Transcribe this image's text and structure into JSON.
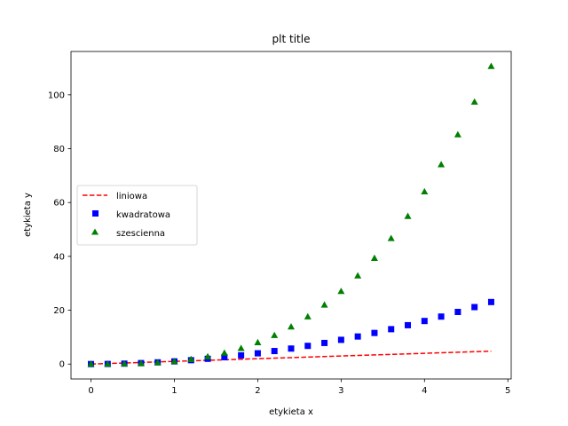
{
  "chart_data": {
    "type": "scatter",
    "title": "plt title",
    "xlabel": "etykieta x",
    "ylabel": "etykieta y",
    "xlim": [
      -0.24,
      5.04
    ],
    "ylim": [
      -5.53,
      116.1
    ],
    "xticks": [
      0,
      1,
      2,
      3,
      4,
      5
    ],
    "yticks": [
      0,
      20,
      40,
      60,
      80,
      100
    ],
    "grid": false,
    "legend_position": "center-left",
    "x": [
      0.0,
      0.2,
      0.4,
      0.6,
      0.8,
      1.0,
      1.2,
      1.4,
      1.6,
      1.8,
      2.0,
      2.2,
      2.4,
      2.6,
      2.8,
      3.0,
      3.2,
      3.4,
      3.6,
      3.8,
      4.0,
      4.2,
      4.4,
      4.6,
      4.8
    ],
    "series": [
      {
        "name": "liniowa",
        "style": "dashed-line",
        "color": "#ff0000",
        "values": [
          0.0,
          0.2,
          0.4,
          0.6,
          0.8,
          1.0,
          1.2,
          1.4,
          1.6,
          1.8,
          2.0,
          2.2,
          2.4,
          2.6,
          2.8,
          3.0,
          3.2,
          3.4,
          3.6,
          3.8,
          4.0,
          4.2,
          4.4,
          4.6,
          4.8
        ]
      },
      {
        "name": "kwadratowa",
        "style": "square-marker",
        "color": "#0000ff",
        "values": [
          0.0,
          0.04,
          0.16,
          0.36,
          0.64,
          1.0,
          1.44,
          1.96,
          2.56,
          3.24,
          4.0,
          4.84,
          5.76,
          6.76,
          7.84,
          9.0,
          10.24,
          11.56,
          12.96,
          14.44,
          16.0,
          17.64,
          19.36,
          21.16,
          23.04
        ]
      },
      {
        "name": "szescienna",
        "style": "triangle-marker",
        "color": "#008000",
        "values": [
          0.0,
          0.008,
          0.064,
          0.216,
          0.512,
          1.0,
          1.728,
          2.744,
          4.096,
          5.832,
          8.0,
          10.648,
          13.824,
          17.576,
          21.952,
          27.0,
          32.768,
          39.304,
          46.656,
          54.872,
          64.0,
          74.088,
          85.184,
          97.336,
          110.592
        ]
      }
    ]
  }
}
